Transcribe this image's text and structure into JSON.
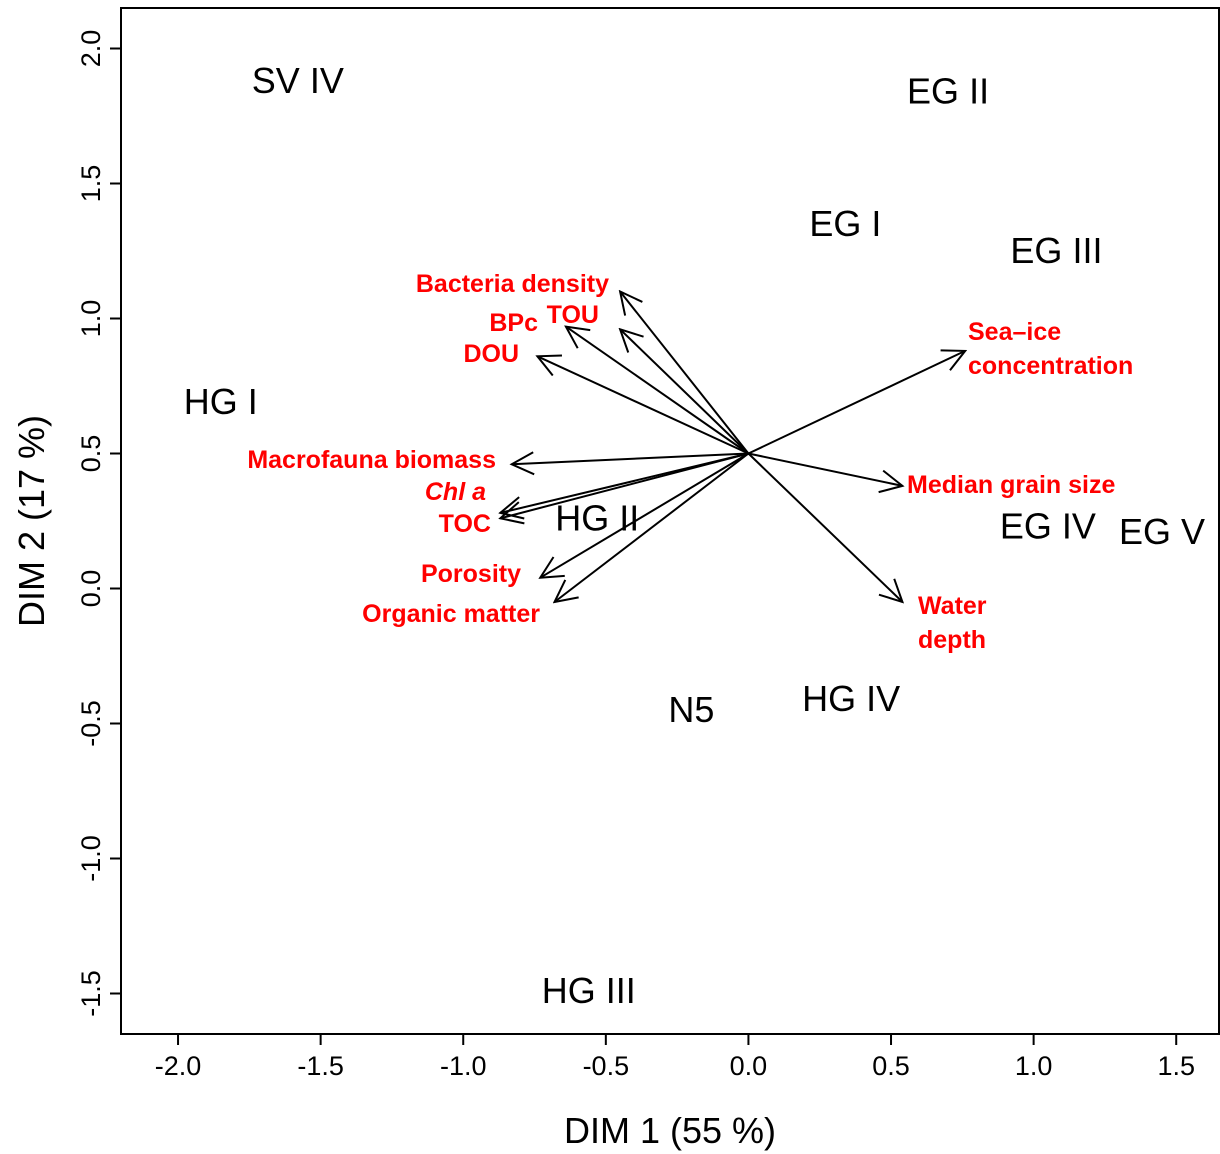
{
  "chart_data": {
    "type": "scatter",
    "title": "",
    "xlabel": "DIM 1 (55 %)",
    "ylabel": "DIM 2 (17 %)",
    "xlim": [
      -2.2,
      1.65
    ],
    "ylim": [
      -1.65,
      2.15
    ],
    "x_ticks": [
      {
        "value": -2.0,
        "label": "-2.0"
      },
      {
        "value": -1.5,
        "label": "-1.5"
      },
      {
        "value": -1.0,
        "label": "-1.0"
      },
      {
        "value": -0.5,
        "label": "-0.5"
      },
      {
        "value": 0.0,
        "label": "0.0"
      },
      {
        "value": 0.5,
        "label": "0.5"
      },
      {
        "value": 1.0,
        "label": "1.0"
      },
      {
        "value": 1.5,
        "label": "1.5"
      }
    ],
    "y_ticks": [
      {
        "value": -1.5,
        "label": "-1.5"
      },
      {
        "value": -1.0,
        "label": "-1.0"
      },
      {
        "value": -0.5,
        "label": "-0.5"
      },
      {
        "value": 0.0,
        "label": "0.0"
      },
      {
        "value": 0.5,
        "label": "0.5"
      },
      {
        "value": 1.0,
        "label": "1.0"
      },
      {
        "value": 1.5,
        "label": "1.5"
      },
      {
        "value": 2.0,
        "label": "2.0"
      }
    ],
    "grid": false,
    "arrow_origin": [
      0.0,
      0.5
    ],
    "sites": [
      {
        "label": "SV IV",
        "x": -1.58,
        "y": 1.88
      },
      {
        "label": "EG II",
        "x": 0.7,
        "y": 1.84
      },
      {
        "label": "EG I",
        "x": 0.34,
        "y": 1.35
      },
      {
        "label": "EG III",
        "x": 1.08,
        "y": 1.25
      },
      {
        "label": "HG I",
        "x": -1.85,
        "y": 0.69
      },
      {
        "label": "HG II",
        "x": -0.53,
        "y": 0.26
      },
      {
        "label": "EG IV",
        "x": 1.05,
        "y": 0.23
      },
      {
        "label": "EG V",
        "x": 1.45,
        "y": 0.21
      },
      {
        "label": "HG IV",
        "x": 0.36,
        "y": -0.41
      },
      {
        "label": "N5",
        "x": -0.2,
        "y": -0.45
      },
      {
        "label": "HG III",
        "x": -0.56,
        "y": -1.49
      }
    ],
    "variables": [
      {
        "label": "Bacteria density",
        "x": -0.45,
        "y": 1.1
      },
      {
        "label": "TOU",
        "x": -0.45,
        "y": 0.96
      },
      {
        "label": "BPc",
        "x": -0.64,
        "y": 0.97
      },
      {
        "label": "DOU",
        "x": -0.74,
        "y": 0.86
      },
      {
        "label": "Macrofauna biomass",
        "x": -0.83,
        "y": 0.46
      },
      {
        "label": "Chl a",
        "x": -0.87,
        "y": 0.28
      },
      {
        "label": "TOC",
        "x": -0.87,
        "y": 0.26
      },
      {
        "label": "Porosity",
        "x": -0.73,
        "y": 0.04
      },
      {
        "label": "Organic matter",
        "x": -0.68,
        "y": -0.05
      },
      {
        "label": "Sea–ice concentration",
        "x": 0.76,
        "y": 0.88
      },
      {
        "label": "Median grain size",
        "x": 0.54,
        "y": 0.38
      },
      {
        "label": "Water depth",
        "x": 0.54,
        "y": -0.05
      }
    ]
  }
}
